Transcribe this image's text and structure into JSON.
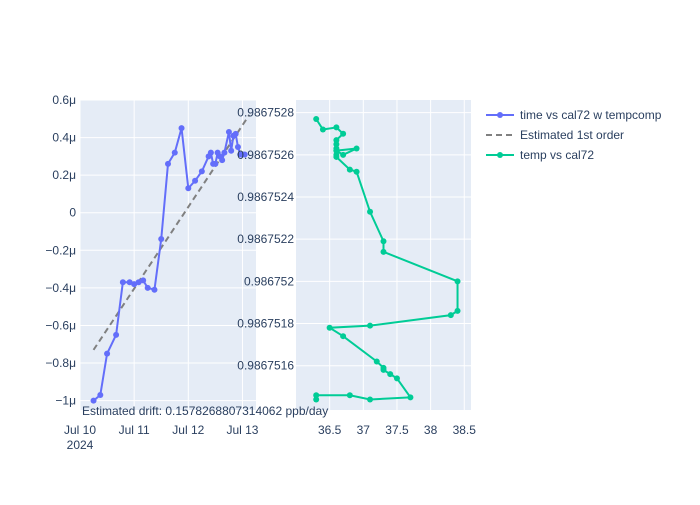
{
  "colors": {
    "plot_bg": "#E5ECF6",
    "grid": "#FFFFFF",
    "tick_text": "#2A3F5F",
    "series1": "#636EFA",
    "series2": "#00CC96",
    "fit": "#808080"
  },
  "chart_data": [
    {
      "type": "scatter",
      "panel": "left",
      "x_ticks": [
        "Jul 10",
        "Jul 11",
        "Jul 12",
        "Jul 13"
      ],
      "x_year_label": "2024",
      "xlim": [
        "2024-07-10",
        "2024-07-13.25"
      ],
      "y_ticks": [
        "−1μ",
        "−0.8μ",
        "−0.6μ",
        "−0.4μ",
        "−0.2μ",
        "0",
        "0.2μ",
        "0.4μ",
        "0.6μ"
      ],
      "y_tick_values": [
        -1.0,
        -0.8,
        -0.6,
        -0.4,
        -0.2,
        0,
        0.2,
        0.4,
        0.6
      ],
      "y_unit_note": "μ = 1e-6",
      "ylim": [
        -1.05,
        0.6
      ],
      "grid": true,
      "annotation": "Estimated drift:  0.1578268807314062 ppb/day",
      "series": [
        {
          "name": "time vs cal72 w tempcomp",
          "mode": "lines+markers",
          "x": [
            "2024-07-10 06:00",
            "2024-07-10 09:00",
            "2024-07-10 12:00",
            "2024-07-10 16:00",
            "2024-07-10 19:00",
            "2024-07-10 22:00",
            "2024-07-11 00:00",
            "2024-07-11 02:00",
            "2024-07-11 04:00",
            "2024-07-11 06:00",
            "2024-07-11 09:00",
            "2024-07-11 12:00",
            "2024-07-11 15:00",
            "2024-07-11 18:00",
            "2024-07-11 21:00",
            "2024-07-12 00:00",
            "2024-07-12 03:00",
            "2024-07-12 06:00",
            "2024-07-12 09:00",
            "2024-07-12 10:00",
            "2024-07-12 11:00",
            "2024-07-12 12:00",
            "2024-07-12 13:00",
            "2024-07-12 14:00",
            "2024-07-12 15:00",
            "2024-07-12 16:00",
            "2024-07-12 18:00",
            "2024-07-12 19:00",
            "2024-07-12 20:00",
            "2024-07-12 21:00",
            "2024-07-12 22:00",
            "2024-07-12 23:00",
            "2024-07-13 00:00",
            "2024-07-13 01:00"
          ],
          "y": [
            -1.0,
            -0.97,
            -0.75,
            -0.65,
            -0.37,
            -0.37,
            -0.38,
            -0.37,
            -0.36,
            -0.4,
            -0.41,
            -0.14,
            0.26,
            0.32,
            0.45,
            0.13,
            0.17,
            0.22,
            0.3,
            0.32,
            0.26,
            0.26,
            0.32,
            0.3,
            0.28,
            0.32,
            0.43,
            0.33,
            0.41,
            0.42,
            0.35,
            0.31,
            0.31,
            0.31
          ]
        },
        {
          "name": "Estimated 1st order",
          "mode": "lines",
          "dash": "dash",
          "x": [
            "2024-07-10 06:00",
            "2024-07-13 03:00"
          ],
          "y": [
            -0.73,
            0.52
          ]
        }
      ]
    },
    {
      "type": "scatter",
      "panel": "right",
      "x_ticks": [
        "36.5",
        "37",
        "37.5",
        "38",
        "38.5"
      ],
      "x_tick_values": [
        36.5,
        37,
        37.5,
        38,
        38.5
      ],
      "xlim": [
        36.0,
        38.6
      ],
      "y_ticks": [
        "0.9867516",
        "0.9867518",
        "0.986752",
        "0.9867522",
        "0.9867524",
        "0.9867526",
        "0.9867528"
      ],
      "y_tick_values": [
        0.9867516,
        0.9867518,
        0.986752,
        0.9867522,
        0.9867524,
        0.9867526,
        0.9867528
      ],
      "ylim": [
        0.98675139,
        0.98675286
      ],
      "grid": true,
      "series": [
        {
          "name": "temp vs cal72",
          "mode": "lines+markers",
          "x": [
            36.3,
            36.3,
            36.8,
            37.1,
            37.7,
            37.5,
            37.4,
            37.3,
            37.3,
            37.2,
            36.7,
            36.5,
            37.1,
            38.3,
            38.4,
            38.4,
            37.3,
            37.3,
            37.1,
            36.9,
            36.8,
            36.6,
            36.6,
            36.6,
            36.7,
            36.9,
            36.6,
            36.6,
            36.6,
            36.6,
            36.7,
            36.6,
            36.4,
            36.3
          ],
          "y": [
            0.98675144,
            0.98675146,
            0.98675146,
            0.98675144,
            0.98675145,
            0.98675154,
            0.98675156,
            0.98675158,
            0.98675159,
            0.98675162,
            0.98675174,
            0.98675178,
            0.98675179,
            0.98675184,
            0.98675186,
            0.986752,
            0.98675214,
            0.98675219,
            0.98675233,
            0.98675252,
            0.98675253,
            0.98675259,
            0.9867526,
            0.98675262,
            0.9867526,
            0.98675263,
            0.98675262,
            0.98675263,
            0.98675265,
            0.98675267,
            0.9867527,
            0.98675273,
            0.98675272,
            0.98675277
          ]
        }
      ]
    }
  ]
}
